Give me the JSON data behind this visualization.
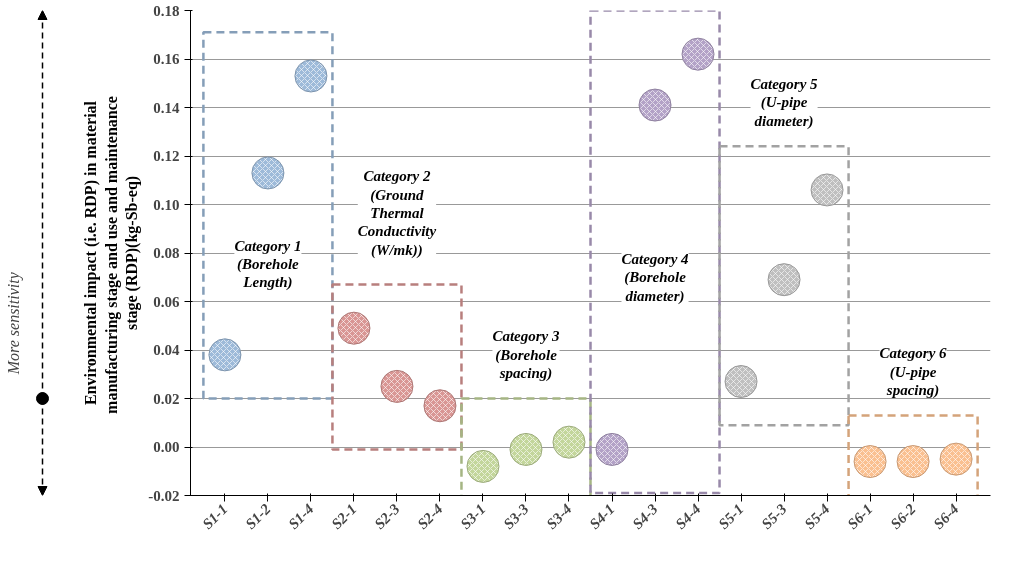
{
  "chart_data": {
    "type": "scatter",
    "ylabel": "Environmental impact (i.e. RDP) in material manufacturing stage  and use and maintenance stage (RDP)(kg-Sb-eq)",
    "categories": [
      "S1-1",
      "S1-2",
      "S1-4",
      "S2-1",
      "S2-3",
      "S2-4",
      "S3-1",
      "S3-3",
      "S3-4",
      "S4-1",
      "S4-3",
      "S4-4",
      "S5-1",
      "S5-3",
      "S5-4",
      "S6-1",
      "S6-2",
      "S6-4"
    ],
    "series": [
      {
        "color": "#9dbad9",
        "values": [
          0.038,
          0.113,
          0.153,
          null,
          null,
          null,
          null,
          null,
          null,
          null,
          null,
          null,
          null,
          null,
          null,
          null,
          null,
          null
        ]
      },
      {
        "color": "#d99694",
        "values": [
          null,
          null,
          null,
          0.049,
          0.025,
          0.017,
          null,
          null,
          null,
          null,
          null,
          null,
          null,
          null,
          null,
          null,
          null,
          null
        ]
      },
      {
        "color": "#c3d69b",
        "values": [
          null,
          null,
          null,
          null,
          null,
          null,
          -0.008,
          -0.001,
          0.002,
          null,
          null,
          null,
          null,
          null,
          null,
          null,
          null,
          null
        ]
      },
      {
        "color": "#b3a2c7",
        "values": [
          null,
          null,
          null,
          null,
          null,
          null,
          null,
          null,
          null,
          -0.001,
          0.141,
          0.162,
          null,
          null,
          null,
          null,
          null,
          null
        ]
      },
      {
        "color": "#bfbfbf",
        "values": [
          null,
          null,
          null,
          null,
          null,
          null,
          null,
          null,
          null,
          null,
          null,
          null,
          0.027,
          0.069,
          0.106,
          null,
          null,
          null
        ]
      },
      {
        "color": "#fac090",
        "values": [
          null,
          null,
          null,
          null,
          null,
          null,
          null,
          null,
          null,
          null,
          null,
          null,
          null,
          null,
          null,
          -0.006,
          -0.006,
          -0.005
        ]
      }
    ],
    "ylim": [
      -0.02,
      0.18
    ],
    "yticks": [
      {
        "value": -0.02,
        "label": "-0.02"
      },
      {
        "value": 0,
        "label": "0.00"
      },
      {
        "value": 0.02,
        "label": "0.02"
      },
      {
        "value": 0.04,
        "label": "0.04"
      },
      {
        "value": 0.06,
        "label": "0.06"
      },
      {
        "value": 0.08,
        "label": "0.08"
      },
      {
        "value": 0.1,
        "label": "0.10"
      },
      {
        "value": 0.12,
        "label": "0.12"
      },
      {
        "value": 0.14,
        "label": "0.14"
      },
      {
        "value": 0.16,
        "label": "0.16"
      },
      {
        "value": 0.18,
        "label": "0.18"
      }
    ],
    "grid": "y",
    "marker": "circle",
    "annotations": [
      "More sensitivity",
      "Category 1 (Borehole Length)",
      "Category 2 (Ground Thermal Conductivity (W/mk))",
      "Category 3 (Borehole spacing)",
      "Category 4 (Borehole diameter)",
      "Category 5 (U-pipe diameter)",
      "Category 6 (U-pipe spacing)"
    ]
  }
}
